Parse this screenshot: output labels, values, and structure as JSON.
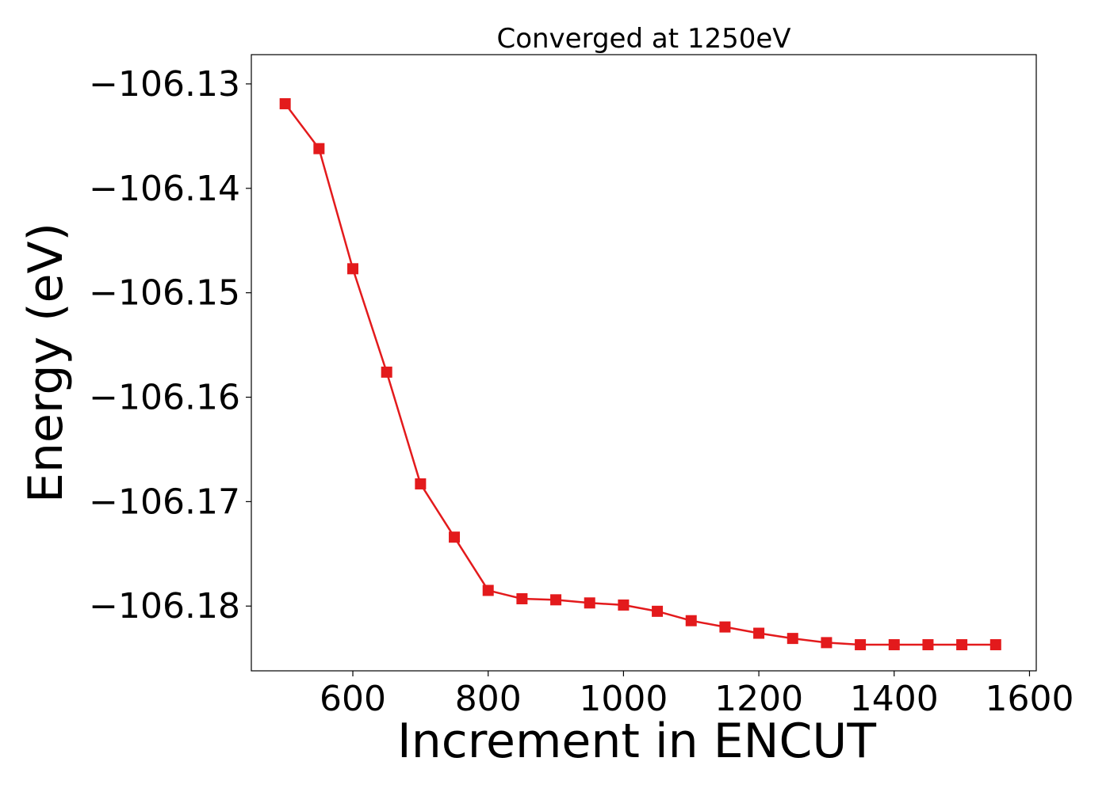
{
  "chart_data": {
    "type": "line",
    "title": "Converged at 1250eV",
    "xlabel": "Increment in ENCUT",
    "ylabel": "Energy (eV)",
    "xlim": [
      450,
      1610
    ],
    "ylim": [
      -106.1862,
      -106.1272
    ],
    "xticks": [
      600,
      800,
      1000,
      1200,
      1400,
      1600
    ],
    "xtick_labels": [
      "600",
      "800",
      "1000",
      "1200",
      "1400",
      "1600"
    ],
    "yticks": [
      -106.13,
      -106.14,
      -106.15,
      -106.16,
      -106.17,
      -106.18
    ],
    "ytick_labels": [
      "−106.13",
      "−106.14",
      "−106.15",
      "−106.16",
      "−106.17",
      "−106.18"
    ],
    "grid": false,
    "legend": "none",
    "colors": {
      "series": "#e31a1c"
    },
    "series": [
      {
        "marker": "square",
        "x": [
          500,
          550,
          600,
          650,
          700,
          750,
          800,
          850,
          900,
          950,
          1000,
          1050,
          1100,
          1150,
          1200,
          1250,
          1300,
          1350,
          1400,
          1450,
          1500,
          1550
        ],
        "y": [
          -106.1319,
          -106.1362,
          -106.1477,
          -106.1576,
          -106.1683,
          -106.1734,
          -106.1785,
          -106.1793,
          -106.1794,
          -106.1797,
          -106.1799,
          -106.1805,
          -106.1814,
          -106.182,
          -106.1826,
          -106.1831,
          -106.1835,
          -106.1837,
          -106.1837,
          -106.1837,
          -106.1837,
          -106.1837
        ]
      }
    ]
  }
}
